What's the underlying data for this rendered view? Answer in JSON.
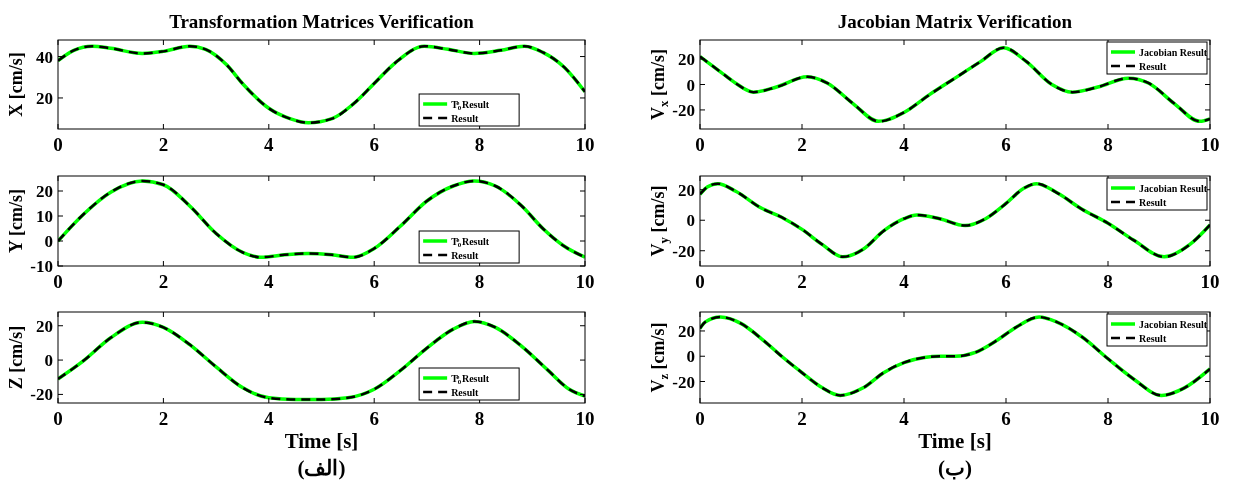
{
  "chart_data": [
    {
      "type": "line",
      "title": "Transformation Matrices Verification",
      "ylabel": "X [cm/s]",
      "xlim": [
        0,
        10
      ],
      "xticks": [
        0,
        2,
        4,
        6,
        8,
        10
      ],
      "ylim": [
        5,
        48
      ],
      "yticks": [
        20,
        40
      ],
      "legend": "bottom right",
      "grid": false,
      "series": [
        {
          "name": "T$_{0}$$^{e}$ Result",
          "color": "#00ff00",
          "line_style": "solid",
          "x": [
            0,
            0.3,
            0.65,
            1,
            1.6,
            2,
            2.5,
            2.8,
            3.2,
            3.5,
            4,
            4.4,
            4.75,
            5.2,
            5.6,
            6,
            6.4,
            6.95,
            7.4,
            7.9,
            8.4,
            8.85,
            9.2,
            9.6,
            10
          ],
          "values": [
            38,
            43,
            45,
            44,
            41.5,
            42.5,
            45,
            43.5,
            36,
            27,
            15,
            10,
            8,
            10,
            17,
            27,
            37,
            45,
            43.5,
            41.5,
            43,
            45,
            42,
            35,
            23
          ]
        },
        {
          "name": "Result",
          "color": "#000000",
          "line_style": "dashed",
          "x": [
            0,
            0.3,
            0.65,
            1,
            1.6,
            2,
            2.5,
            2.8,
            3.2,
            3.5,
            4,
            4.4,
            4.75,
            5.2,
            5.6,
            6,
            6.4,
            6.95,
            7.4,
            7.9,
            8.4,
            8.85,
            9.2,
            9.6,
            10
          ],
          "values": [
            38,
            43,
            45,
            44,
            41.5,
            42.5,
            45,
            43.5,
            36,
            27,
            15,
            10,
            8,
            10,
            17,
            27,
            37,
            45,
            43.5,
            41.5,
            43,
            45,
            42,
            35,
            23
          ]
        }
      ]
    },
    {
      "type": "line",
      "title": "Jacobian Matrix Verification",
      "ylabel": "V$_{x}$ [cm/s]",
      "xlim": [
        0,
        10
      ],
      "xticks": [
        0,
        2,
        4,
        6,
        8,
        10
      ],
      "ylim": [
        -35,
        35
      ],
      "yticks": [
        -20,
        0,
        20
      ],
      "legend": "top right",
      "grid": false,
      "series": [
        {
          "name": "Jacobian Result",
          "color": "#00ff00",
          "line_style": "solid",
          "x": [
            0,
            0.4,
            0.7,
            1.05,
            1.5,
            2.1,
            2.5,
            3,
            3.5,
            4,
            4.5,
            5,
            5.5,
            5.95,
            6.4,
            6.9,
            7.3,
            7.8,
            8.4,
            8.8,
            9.3,
            9.8,
            10
          ],
          "values": [
            22,
            10,
            1,
            -6,
            -2,
            6,
            1,
            -15,
            -29,
            -22,
            -8,
            5,
            18,
            29,
            18,
            0,
            -6,
            -2,
            5,
            1,
            -15,
            -29,
            -27
          ]
        },
        {
          "name": "Result",
          "color": "#000000",
          "line_style": "dashed",
          "x": [
            0,
            0.4,
            0.7,
            1.05,
            1.5,
            2.1,
            2.5,
            3,
            3.5,
            4,
            4.5,
            5,
            5.5,
            5.95,
            6.4,
            6.9,
            7.3,
            7.8,
            8.4,
            8.8,
            9.3,
            9.8,
            10
          ],
          "values": [
            22,
            10,
            1,
            -6,
            -2,
            6,
            1,
            -15,
            -29,
            -22,
            -8,
            5,
            18,
            29,
            18,
            0,
            -6,
            -2,
            5,
            1,
            -15,
            -29,
            -27
          ]
        }
      ]
    },
    {
      "type": "line",
      "ylabel": "Y [cm/s]",
      "xlim": [
        0,
        10
      ],
      "xticks": [
        0,
        2,
        4,
        6,
        8,
        10
      ],
      "ylim": [
        -10,
        26
      ],
      "yticks": [
        -10,
        0,
        10,
        20
      ],
      "legend": "bottom right",
      "grid": false,
      "series": [
        {
          "name": "T$_{0}$$^{e}$ Result",
          "color": "#00ff00",
          "line_style": "solid",
          "x": [
            0,
            0.5,
            1,
            1.6,
            2,
            2.5,
            3,
            3.5,
            3.85,
            4.3,
            4.75,
            5.2,
            5.6,
            6,
            6.5,
            7,
            7.5,
            7.9,
            8.3,
            8.8,
            9.2,
            9.6,
            10
          ],
          "values": [
            0,
            11,
            19.5,
            24,
            22.5,
            14,
            3,
            -4.5,
            -6.5,
            -5.5,
            -5,
            -5.5,
            -6.5,
            -3,
            6,
            16,
            22,
            24,
            22,
            14,
            5,
            -2,
            -6.5
          ]
        },
        {
          "name": "Result",
          "color": "#000000",
          "line_style": "dashed",
          "x": [
            0,
            0.5,
            1,
            1.6,
            2,
            2.5,
            3,
            3.5,
            3.85,
            4.3,
            4.75,
            5.2,
            5.6,
            6,
            6.5,
            7,
            7.5,
            7.9,
            8.3,
            8.8,
            9.2,
            9.6,
            10
          ],
          "values": [
            0,
            11,
            19.5,
            24,
            22.5,
            14,
            3,
            -4.5,
            -6.5,
            -5.5,
            -5,
            -5.5,
            -6.5,
            -3,
            6,
            16,
            22,
            24,
            22,
            14,
            5,
            -2,
            -6.5
          ]
        }
      ]
    },
    {
      "type": "line",
      "ylabel": "V$_{y}$ [cm/s]",
      "xlim": [
        0,
        10
      ],
      "xticks": [
        0,
        2,
        4,
        6,
        8,
        10
      ],
      "ylim": [
        -30,
        29
      ],
      "yticks": [
        -20,
        0,
        20
      ],
      "legend": "top right",
      "grid": false,
      "series": [
        {
          "name": "Jacobian Result",
          "color": "#00ff00",
          "line_style": "solid",
          "x": [
            0,
            0.15,
            0.35,
            0.7,
            1.2,
            1.6,
            2,
            2.4,
            2.8,
            3.2,
            3.6,
            4,
            4.25,
            4.7,
            5.2,
            5.6,
            6,
            6.35,
            6.6,
            7,
            7.5,
            8,
            8.5,
            9.1,
            9.6,
            10
          ],
          "values": [
            17,
            22,
            24,
            19,
            8,
            2,
            -6,
            -16,
            -24,
            -19,
            -7,
            1,
            3.5,
            1,
            -3.5,
            1,
            11,
            21,
            24,
            18,
            7,
            -2,
            -13,
            -24,
            -16,
            -3
          ]
        },
        {
          "name": "Result",
          "color": "#000000",
          "line_style": "dashed",
          "x": [
            0,
            0.15,
            0.35,
            0.7,
            1.2,
            1.6,
            2,
            2.4,
            2.8,
            3.2,
            3.6,
            4,
            4.25,
            4.7,
            5.2,
            5.6,
            6,
            6.35,
            6.6,
            7,
            7.5,
            8,
            8.5,
            9.1,
            9.6,
            10
          ],
          "values": [
            17,
            22,
            24,
            19,
            8,
            2,
            -6,
            -16,
            -24,
            -19,
            -7,
            1,
            3.5,
            1,
            -3.5,
            1,
            11,
            21,
            24,
            18,
            7,
            -2,
            -13,
            -24,
            -16,
            -3
          ]
        }
      ]
    },
    {
      "type": "line",
      "ylabel": "Z [cm/s]",
      "xlabel": "Time [s]",
      "annotations": [
        "(الف)"
      ],
      "xlim": [
        0,
        10
      ],
      "xticks": [
        0,
        2,
        4,
        6,
        8,
        10
      ],
      "ylim": [
        -25,
        28
      ],
      "yticks": [
        -20,
        0,
        20
      ],
      "legend": "bottom right",
      "grid": false,
      "series": [
        {
          "name": "T$_{0}$$^{e}$ Result",
          "color": "#00ff00",
          "line_style": "solid",
          "x": [
            0,
            0.5,
            1,
            1.6,
            2,
            2.5,
            3,
            3.5,
            4,
            4.5,
            5,
            5.5,
            6,
            6.5,
            7,
            7.5,
            7.9,
            8.3,
            8.8,
            9.3,
            9.7,
            10
          ],
          "values": [
            -11,
            0,
            13,
            22,
            19,
            9,
            -4,
            -16,
            -22,
            -23,
            -23,
            -22,
            -17,
            -6,
            7,
            18,
            22.5,
            19,
            8,
            -6,
            -17,
            -21
          ]
        },
        {
          "name": "Result",
          "color": "#000000",
          "line_style": "dashed",
          "x": [
            0,
            0.5,
            1,
            1.6,
            2,
            2.5,
            3,
            3.5,
            4,
            4.5,
            5,
            5.5,
            6,
            6.5,
            7,
            7.5,
            7.9,
            8.3,
            8.8,
            9.3,
            9.7,
            10
          ],
          "values": [
            -11,
            0,
            13,
            22,
            19,
            9,
            -4,
            -16,
            -22,
            -23,
            -23,
            -22,
            -17,
            -6,
            7,
            18,
            22.5,
            19,
            8,
            -6,
            -17,
            -21
          ]
        }
      ]
    },
    {
      "type": "line",
      "ylabel": "V$_{z}$ [cm/s]",
      "xlabel": "Time [s]",
      "annotations": [
        "(ب)"
      ],
      "xlim": [
        0,
        10
      ],
      "xticks": [
        0,
        2,
        4,
        6,
        8,
        10
      ],
      "ylim": [
        -37,
        35
      ],
      "yticks": [
        -20,
        0,
        20
      ],
      "legend": "top right",
      "grid": false,
      "series": [
        {
          "name": "Jacobian Result",
          "color": "#00ff00",
          "line_style": "solid",
          "x": [
            0,
            0.1,
            0.4,
            0.8,
            1.2,
            1.6,
            2,
            2.4,
            2.75,
            3.2,
            3.6,
            4,
            4.4,
            4.7,
            5,
            5.4,
            5.8,
            6.2,
            6.65,
            7,
            7.5,
            8,
            8.5,
            9.05,
            9.5,
            10
          ],
          "values": [
            22,
            27,
            31,
            26,
            14,
            0,
            -13,
            -25,
            -31,
            -25,
            -13,
            -5,
            -1,
            0,
            0,
            3,
            12,
            23,
            31,
            27,
            15,
            -2,
            -18,
            -31,
            -25,
            -10
          ]
        },
        {
          "name": "Result",
          "color": "#000000",
          "line_style": "dashed",
          "x": [
            0,
            0.1,
            0.4,
            0.8,
            1.2,
            1.6,
            2,
            2.4,
            2.75,
            3.2,
            3.6,
            4,
            4.4,
            4.7,
            5,
            5.4,
            5.8,
            6.2,
            6.65,
            7,
            7.5,
            8,
            8.5,
            9.05,
            9.5,
            10
          ],
          "values": [
            22,
            27,
            31,
            26,
            14,
            0,
            -13,
            -25,
            -31,
            -25,
            -13,
            -5,
            -1,
            0,
            0,
            3,
            12,
            23,
            31,
            27,
            15,
            -2,
            -18,
            -31,
            -25,
            -10
          ]
        }
      ]
    }
  ]
}
